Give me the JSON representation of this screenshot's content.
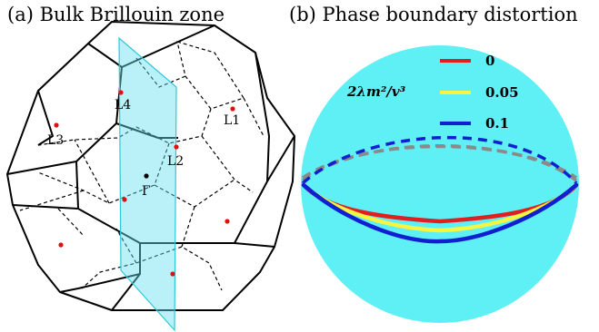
{
  "panel_a": {
    "title": "(a) Bulk Brillouin zone",
    "points": [
      {
        "name": "L4",
        "label": "L4"
      },
      {
        "name": "L1",
        "label": "L1"
      },
      {
        "name": "L3",
        "label": "L3"
      },
      {
        "name": "L2",
        "label": "L2"
      },
      {
        "name": "Gamma",
        "label": "Γ"
      }
    ]
  },
  "panel_b": {
    "title": "(b) Phase boundary distortion",
    "legend_title": "2λm²/v³",
    "legend": [
      {
        "label": "0",
        "color": "#e02020"
      },
      {
        "label": "0.05",
        "color": "#f5f542"
      },
      {
        "label": "0.1",
        "color": "#1020d0"
      }
    ],
    "sphere_color": "#5ff0f5",
    "dashed_color": "#8a8a8a"
  },
  "colors": {
    "plane": "#66e0f0",
    "points": "#e01010"
  }
}
